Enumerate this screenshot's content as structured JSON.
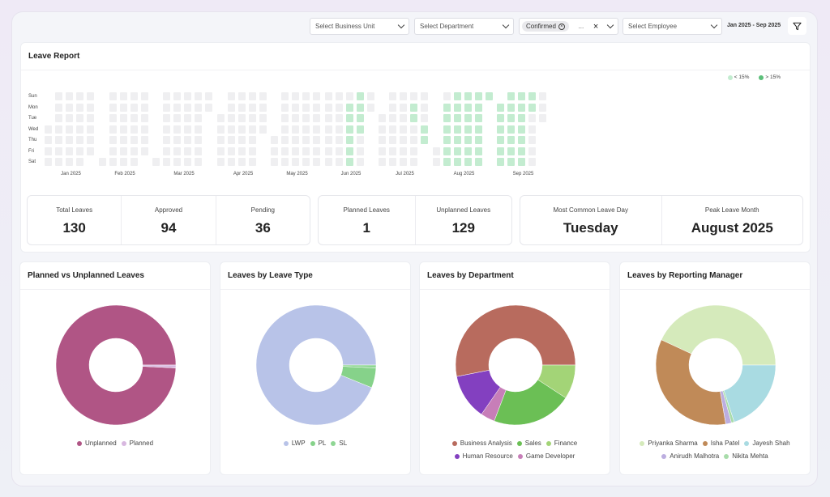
{
  "filters": {
    "business_unit": {
      "placeholder": "Select Business Unit"
    },
    "department": {
      "placeholder": "Select Department"
    },
    "status": {
      "chip": "Confirmed",
      "more": "..."
    },
    "employee": {
      "placeholder": "Select Employee"
    },
    "date_range": "Jan 2025 - Sep 2025",
    "filter_icon": "filter-icon"
  },
  "leave_report": {
    "title": "Leave Report",
    "legend": [
      {
        "label": "< 15%",
        "color": "#c3ecd0"
      },
      {
        "label": "> 15%",
        "color": "#5cbf7a"
      }
    ],
    "days": [
      "Sun",
      "Mon",
      "Tue",
      "Wed",
      "Thu",
      "Fri",
      "Sat"
    ],
    "months": [
      "Jan 2025",
      "Feb 2025",
      "Mar 2025",
      "Apr 2025",
      "May 2025",
      "Jun 2025",
      "Jul 2025",
      "Aug 2025",
      "Sep 2025"
    ],
    "empty_color": "#efeff1",
    "low_days": [
      "2025-06-16",
      "2025-06-17",
      "2025-06-18",
      "2025-06-19",
      "2025-06-20",
      "2025-06-21",
      "2025-06-22",
      "2025-06-23",
      "2025-06-24",
      "2025-06-25",
      "2025-07-21",
      "2025-07-22",
      "2025-07-30",
      "2025-07-31",
      "2025-08-04..2025-08-31",
      "2025-09-01..2025-09-22"
    ],
    "high_days": []
  },
  "stats": {
    "group1": [
      {
        "label": "Total Leaves",
        "value": "130"
      },
      {
        "label": "Approved",
        "value": "94"
      },
      {
        "label": "Pending",
        "value": "36"
      }
    ],
    "group2": [
      {
        "label": "Planned Leaves",
        "value": "1"
      },
      {
        "label": "Unplanned Leaves",
        "value": "129"
      }
    ],
    "group3": [
      {
        "label": "Most Common Leave Day",
        "value": "Tuesday"
      },
      {
        "label": "Peak Leave Month",
        "value": "August 2025"
      }
    ]
  },
  "chart_data": [
    {
      "type": "pie",
      "donut": true,
      "title": "Planned vs Unplanned Leaves",
      "series": [
        {
          "name": "Unplanned",
          "value": 129,
          "color": "#b05585"
        },
        {
          "name": "Planned",
          "value": 1,
          "color": "#d8b8e0"
        }
      ]
    },
    {
      "type": "pie",
      "donut": true,
      "title": "Leaves by Leave Type",
      "series": [
        {
          "name": "LWP",
          "value": 122,
          "color": "#b8c3e8"
        },
        {
          "name": "PL",
          "value": 7,
          "color": "#86d28a"
        },
        {
          "name": "SL",
          "value": 1,
          "color": "#8fd694"
        }
      ]
    },
    {
      "type": "pie",
      "donut": true,
      "title": "Leaves by Department",
      "series": [
        {
          "name": "Business Analysis",
          "value": 69,
          "color": "#b86b5e"
        },
        {
          "name": "Human Resource",
          "value": 16,
          "color": "#8340c0"
        },
        {
          "name": "Game Developer",
          "value": 5,
          "color": "#c77eb8"
        },
        {
          "name": "Sales",
          "value": 28,
          "color": "#6bbf55"
        },
        {
          "name": "Finance",
          "value": 12,
          "color": "#a3d477"
        }
      ],
      "legend_rows": [
        [
          "Business Analysis",
          "Sales",
          "Finance"
        ],
        [
          "Human Resource",
          "Game Developer"
        ]
      ]
    },
    {
      "type": "pie",
      "donut": true,
      "title": "Leaves by Reporting Manager",
      "series": [
        {
          "name": "Priyanka Sharma",
          "value": 56,
          "color": "#d5eabb"
        },
        {
          "name": "Isha Patel",
          "value": 45,
          "color": "#c08a58"
        },
        {
          "name": "Anirudh Malhotra",
          "value": 2,
          "color": "#bcaee0"
        },
        {
          "name": "Nikita Mehta",
          "value": 1,
          "color": "#a8dcaa"
        },
        {
          "name": "Jayesh Shah",
          "value": 26,
          "color": "#a9dbe2"
        }
      ],
      "legend_rows": [
        [
          "Priyanka Sharma",
          "Isha Patel",
          "Jayesh Shah"
        ],
        [
          "Anirudh Malhotra",
          "Nikita Mehta"
        ]
      ]
    }
  ]
}
